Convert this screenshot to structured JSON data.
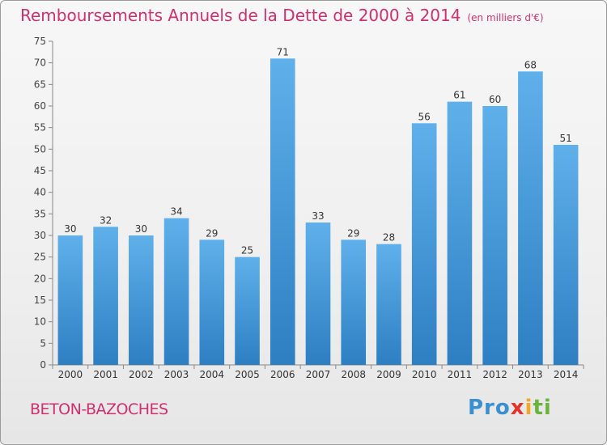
{
  "title": "Remboursements Annuels de la Dette de 2000 à 2014",
  "subtitle": "(en milliers d'€)",
  "commune": "BETON-BAZOCHES",
  "logo": {
    "p1": "Pro",
    "p2": "x",
    "p3": "i",
    "p4": "ti"
  },
  "colors": {
    "title": "#d0306e",
    "bar_top": "#5fb0ea",
    "bar_bottom": "#2d7fc2"
  },
  "chart_data": {
    "type": "bar",
    "title": "Remboursements Annuels de la Dette de 2000 à 2014",
    "subtitle": "(en milliers d'€)",
    "xlabel": "",
    "ylabel": "",
    "categories": [
      "2000",
      "2001",
      "2002",
      "2003",
      "2004",
      "2005",
      "2006",
      "2007",
      "2008",
      "2009",
      "2010",
      "2011",
      "2012",
      "2013",
      "2014"
    ],
    "values": [
      30,
      32,
      30,
      34,
      29,
      25,
      71,
      33,
      29,
      28,
      56,
      61,
      60,
      68,
      51
    ],
    "ylim": [
      0,
      75
    ],
    "yticks": [
      0,
      5,
      10,
      15,
      20,
      25,
      30,
      35,
      40,
      45,
      50,
      55,
      60,
      65,
      70,
      75
    ],
    "grid": false,
    "legend": "none",
    "data_labels": true
  }
}
